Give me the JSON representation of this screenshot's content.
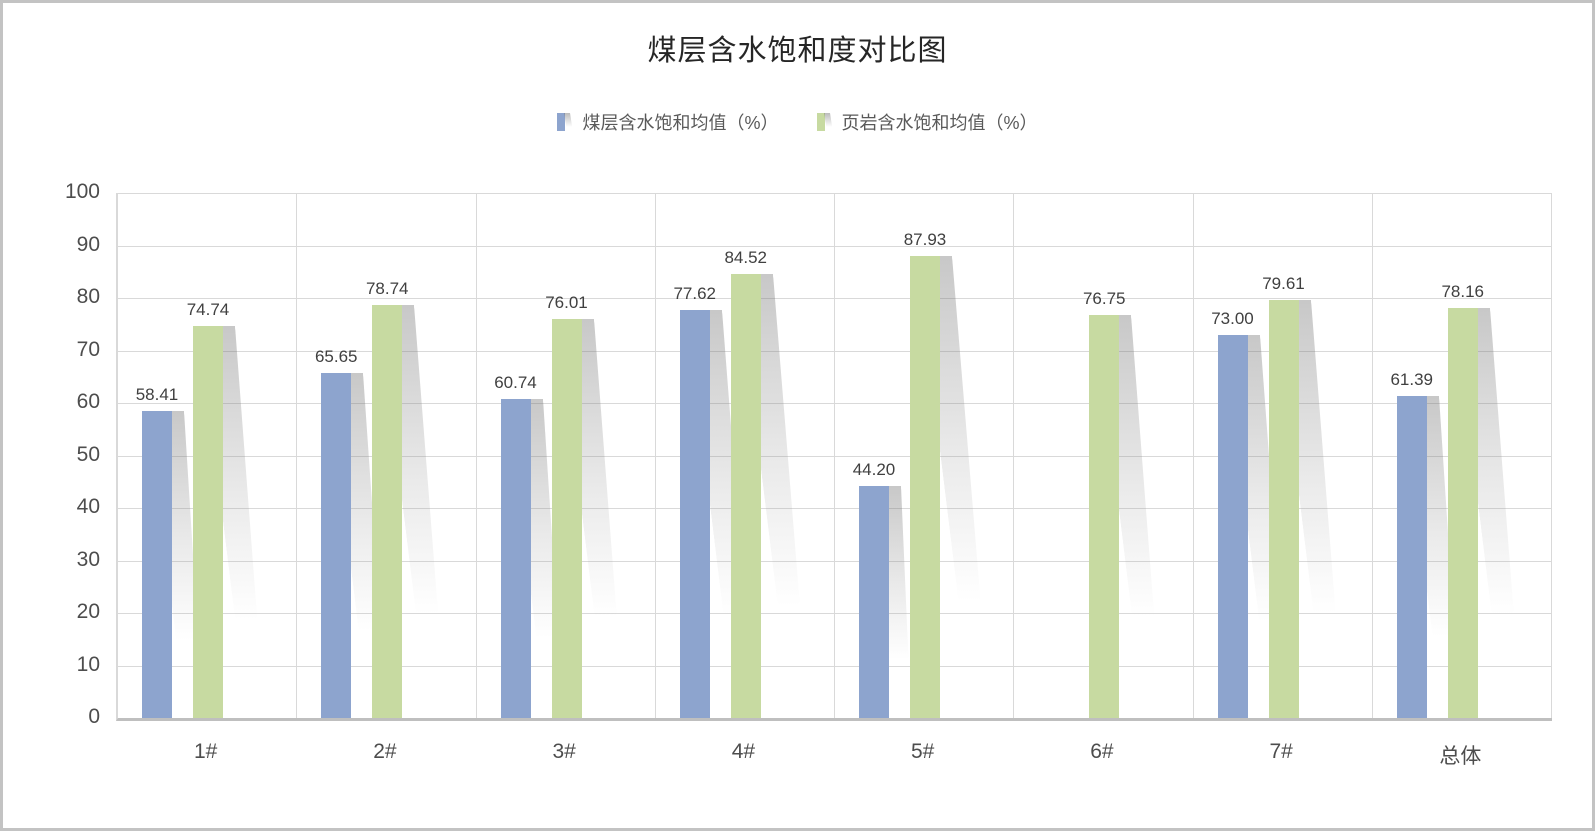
{
  "title": "煤层含水饱和度对比图",
  "colors": {
    "coal_bar": "#8DA4CE",
    "shale_bar": "#C7DAA1",
    "gridline": "#D9D9D9",
    "axis_baseline": "#BFBFBF",
    "title_text": "#262626",
    "tick_text": "#4D4D4D",
    "data_label_text": "#404040",
    "frame_border": "#C3C3C3"
  },
  "chart_data": {
    "type": "bar",
    "title": "煤层含水饱和度对比图",
    "categories": [
      "1#",
      "2#",
      "3#",
      "4#",
      "5#",
      "6#",
      "7#",
      "总体"
    ],
    "series": [
      {
        "name": "煤层含水饱和均值（%）",
        "color": "#8DA4CE",
        "values": [
          58.41,
          65.65,
          60.74,
          77.62,
          44.2,
          null,
          73.0,
          61.39
        ]
      },
      {
        "name": "页岩含水饱和均值（%）",
        "color": "#C7DAA1",
        "values": [
          74.74,
          78.74,
          76.01,
          84.52,
          87.93,
          76.75,
          79.61,
          78.16
        ]
      }
    ],
    "xlabel": "",
    "ylabel": "",
    "ylim": [
      0,
      100
    ],
    "yticks": [
      0,
      10,
      20,
      30,
      40,
      50,
      60,
      70,
      80,
      90,
      100
    ],
    "grid": true,
    "legend_position": "top",
    "data_labels": true,
    "data_label_decimals": 2,
    "bar_effect": "perspective-shadow"
  }
}
